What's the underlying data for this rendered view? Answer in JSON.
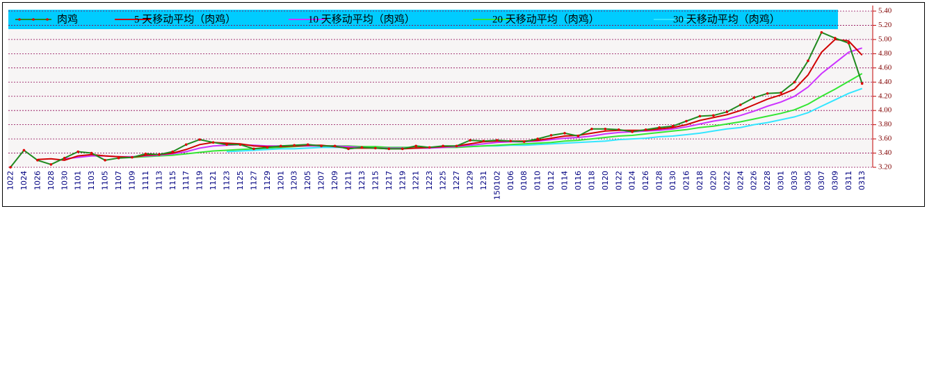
{
  "chart_data": {
    "type": "line",
    "categories": [
      "1022",
      "1024",
      "1026",
      "1028",
      "1030",
      "1101",
      "1103",
      "1105",
      "1107",
      "1109",
      "1111",
      "1113",
      "1115",
      "1117",
      "1119",
      "1121",
      "1123",
      "1125",
      "1127",
      "1129",
      "1201",
      "1203",
      "1205",
      "1207",
      "1209",
      "1211",
      "1213",
      "1215",
      "1217",
      "1219",
      "1221",
      "1223",
      "1225",
      "1227",
      "1229",
      "1231",
      "150102",
      "0106",
      "0108",
      "0110",
      "0112",
      "0114",
      "0116",
      "0118",
      "0120",
      "0122",
      "0124",
      "0126",
      "0128",
      "0130",
      "0216",
      "0218",
      "0220",
      "0222",
      "0224",
      "0226",
      "0228",
      "0301",
      "0303",
      "0305",
      "0307",
      "0309",
      "0311",
      "0313"
    ],
    "series": [
      {
        "name": "肉鸡",
        "color": "#1f8a1f",
        "marker_color": "#e00000",
        "values": [
          3.2,
          3.44,
          3.3,
          3.24,
          3.33,
          3.42,
          3.4,
          3.3,
          3.33,
          3.34,
          3.39,
          3.38,
          3.42,
          3.52,
          3.59,
          3.55,
          3.52,
          3.52,
          3.46,
          3.48,
          3.5,
          3.51,
          3.52,
          3.5,
          3.5,
          3.46,
          3.48,
          3.47,
          3.46,
          3.46,
          3.5,
          3.48,
          3.5,
          3.5,
          3.58,
          3.57,
          3.58,
          3.57,
          3.56,
          3.6,
          3.65,
          3.68,
          3.64,
          3.74,
          3.74,
          3.73,
          3.7,
          3.73,
          3.76,
          3.78,
          3.85,
          3.92,
          3.93,
          3.98,
          4.08,
          4.18,
          4.24,
          4.25,
          4.4,
          4.7,
          5.1,
          5.02,
          4.95,
          4.38
        ]
      },
      {
        "name": "5 天移动平均（肉鸡）",
        "color": "#d00000",
        "values": [
          null,
          null,
          3.31,
          3.32,
          3.3,
          3.36,
          3.38,
          3.36,
          3.35,
          3.34,
          3.37,
          3.38,
          3.4,
          3.45,
          3.52,
          3.55,
          3.54,
          3.53,
          3.5,
          3.49,
          3.49,
          3.5,
          3.51,
          3.51,
          3.49,
          3.47,
          3.47,
          3.47,
          3.46,
          3.46,
          3.47,
          3.48,
          3.49,
          3.5,
          3.53,
          3.56,
          3.57,
          3.57,
          3.57,
          3.58,
          3.61,
          3.64,
          3.65,
          3.68,
          3.71,
          3.72,
          3.72,
          3.72,
          3.74,
          3.76,
          3.8,
          3.86,
          3.9,
          3.94,
          4.0,
          4.08,
          4.16,
          4.22,
          4.3,
          4.5,
          4.82,
          5.0,
          4.98,
          4.78
        ]
      },
      {
        "name": "10 天移动平均（肉鸡）",
        "color": "#cc33ff",
        "values": [
          null,
          null,
          null,
          null,
          3.32,
          3.34,
          3.36,
          3.36,
          3.35,
          3.35,
          3.36,
          3.37,
          3.39,
          3.42,
          3.47,
          3.5,
          3.51,
          3.52,
          3.51,
          3.5,
          3.5,
          3.5,
          3.5,
          3.5,
          3.5,
          3.49,
          3.48,
          3.47,
          3.47,
          3.47,
          3.47,
          3.47,
          3.48,
          3.49,
          3.51,
          3.53,
          3.55,
          3.56,
          3.56,
          3.57,
          3.59,
          3.61,
          3.62,
          3.64,
          3.67,
          3.69,
          3.7,
          3.71,
          3.72,
          3.74,
          3.77,
          3.81,
          3.85,
          3.88,
          3.93,
          3.99,
          4.06,
          4.12,
          4.2,
          4.33,
          4.52,
          4.67,
          4.82,
          4.88
        ]
      },
      {
        "name": "20 天移动平均（肉鸡）",
        "color": "#33e633",
        "values": [
          null,
          null,
          null,
          null,
          null,
          null,
          null,
          null,
          null,
          3.34,
          3.35,
          3.36,
          3.37,
          3.39,
          3.41,
          3.43,
          3.44,
          3.45,
          3.46,
          3.47,
          3.48,
          3.49,
          3.5,
          3.5,
          3.5,
          3.5,
          3.49,
          3.49,
          3.48,
          3.48,
          3.48,
          3.48,
          3.48,
          3.48,
          3.49,
          3.5,
          3.51,
          3.52,
          3.53,
          3.54,
          3.55,
          3.57,
          3.58,
          3.6,
          3.62,
          3.64,
          3.65,
          3.67,
          3.69,
          3.71,
          3.73,
          3.76,
          3.78,
          3.81,
          3.84,
          3.88,
          3.92,
          3.96,
          4.01,
          4.09,
          4.2,
          4.3,
          4.41,
          4.52
        ]
      },
      {
        "name": "30 天移动平均（肉鸡）",
        "color": "#33e6ff",
        "values": [
          null,
          null,
          null,
          null,
          null,
          null,
          null,
          null,
          null,
          null,
          null,
          null,
          null,
          null,
          null,
          null,
          3.42,
          3.43,
          3.44,
          3.45,
          3.46,
          3.46,
          3.47,
          3.48,
          3.48,
          3.48,
          3.48,
          3.48,
          3.48,
          3.48,
          3.48,
          3.48,
          3.48,
          3.49,
          3.49,
          3.5,
          3.5,
          3.51,
          3.51,
          3.52,
          3.53,
          3.54,
          3.55,
          3.56,
          3.57,
          3.59,
          3.6,
          3.61,
          3.63,
          3.64,
          3.66,
          3.68,
          3.71,
          3.74,
          3.76,
          3.8,
          3.83,
          3.87,
          3.91,
          3.97,
          4.06,
          4.15,
          4.24,
          4.31
        ]
      }
    ],
    "ylim": [
      3.2,
      5.4
    ],
    "yticks": [
      {
        "value": 3.2,
        "label": "3.20"
      },
      {
        "value": 3.4,
        "label": "3.40"
      },
      {
        "value": 3.6,
        "label": "3.60"
      },
      {
        "value": 3.8,
        "label": "3.80"
      },
      {
        "value": 4.0,
        "label": "4.00"
      },
      {
        "value": 4.2,
        "label": "4.20"
      },
      {
        "value": 4.4,
        "label": "4.40"
      },
      {
        "value": 4.6,
        "label": "4.60"
      },
      {
        "value": 4.8,
        "label": "4.80"
      },
      {
        "value": 5.0,
        "label": "5.00"
      },
      {
        "value": 5.2,
        "label": "5.20"
      },
      {
        "value": 5.4,
        "label": "5.40"
      }
    ],
    "grid": true,
    "legend": "top"
  }
}
